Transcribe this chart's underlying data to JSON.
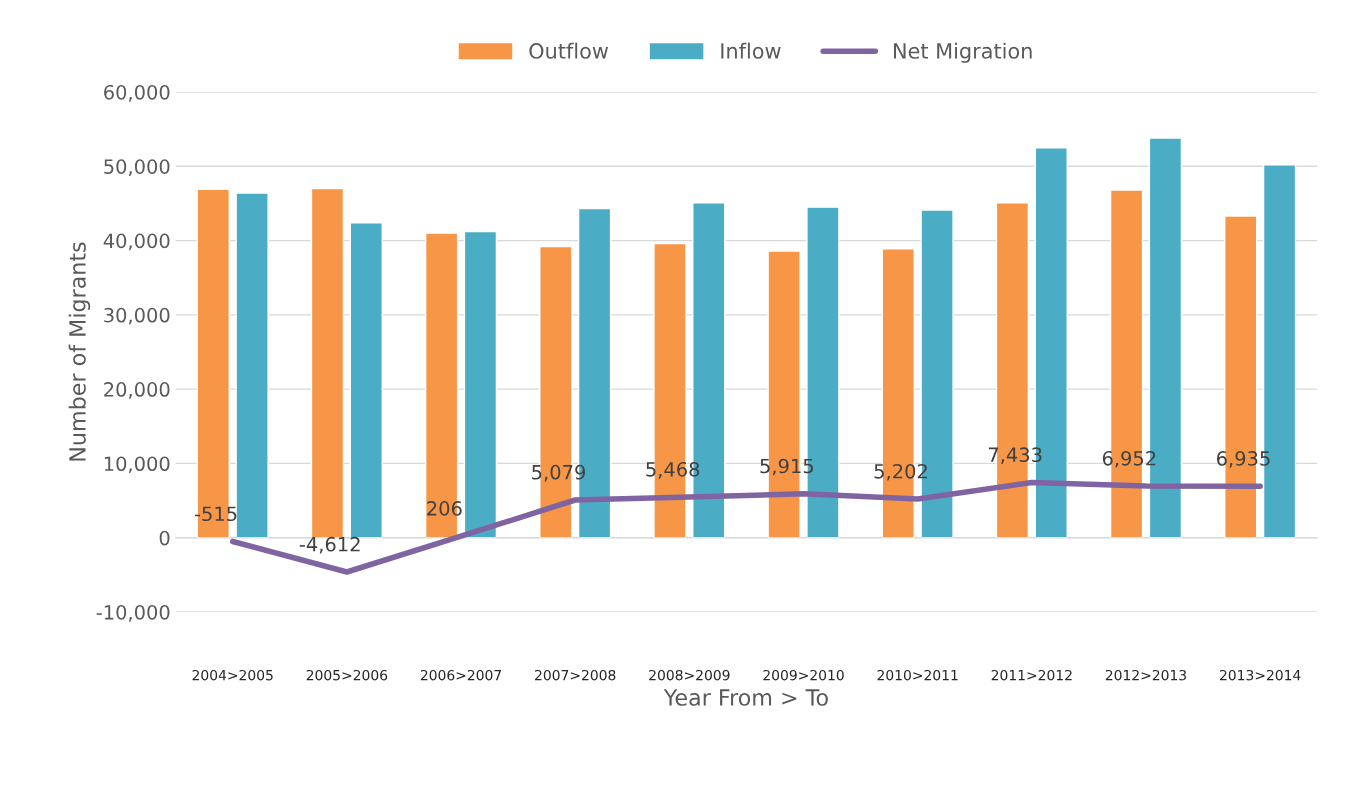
{
  "chart_data": {
    "type": "bar",
    "xlabel": "Year From > To",
    "ylabel": "Number of Migrants",
    "categories": [
      "2004>2005",
      "2005>2006",
      "2006>2007",
      "2007>2008",
      "2008>2009",
      "2009>2010",
      "2010>2011",
      "2011>2012",
      "2012>2013",
      "2013>2014"
    ],
    "series": [
      {
        "name": "Outflow",
        "color": "#f79646",
        "values": [
          46900,
          47000,
          41000,
          39200,
          39600,
          38600,
          38900,
          45100,
          46800,
          43300
        ]
      },
      {
        "name": "Inflow",
        "color": "#4bacc6",
        "values": [
          46400,
          42400,
          41200,
          44300,
          45100,
          44500,
          44100,
          52500,
          53800,
          50200
        ]
      },
      {
        "name": "Net Migration",
        "type": "line",
        "color": "#8064a2",
        "values": [
          -515,
          -4612,
          206,
          5079,
          5468,
          5915,
          5202,
          7433,
          6952,
          6935
        ],
        "value_labels": [
          "-515",
          "-4,612",
          "206",
          "5,079",
          "5,468",
          "5,915",
          "5,202",
          "7,433",
          "6,952",
          "6,935"
        ]
      }
    ],
    "ylim": [
      -10000,
      60000
    ],
    "yticks": [
      {
        "value": -10000,
        "label": "-10,000"
      },
      0,
      {
        "value": 10000,
        "label": "10,000"
      },
      {
        "value": 20000,
        "label": "20,000"
      },
      {
        "value": 30000,
        "label": "30,000"
      },
      {
        "value": 40000,
        "label": "40,000"
      },
      {
        "value": 50000,
        "label": "50,000"
      },
      {
        "value": 60000,
        "label": "60,000"
      }
    ],
    "grid": "y",
    "legend": "top",
    "marker": "none",
    "line_style": "solid"
  }
}
